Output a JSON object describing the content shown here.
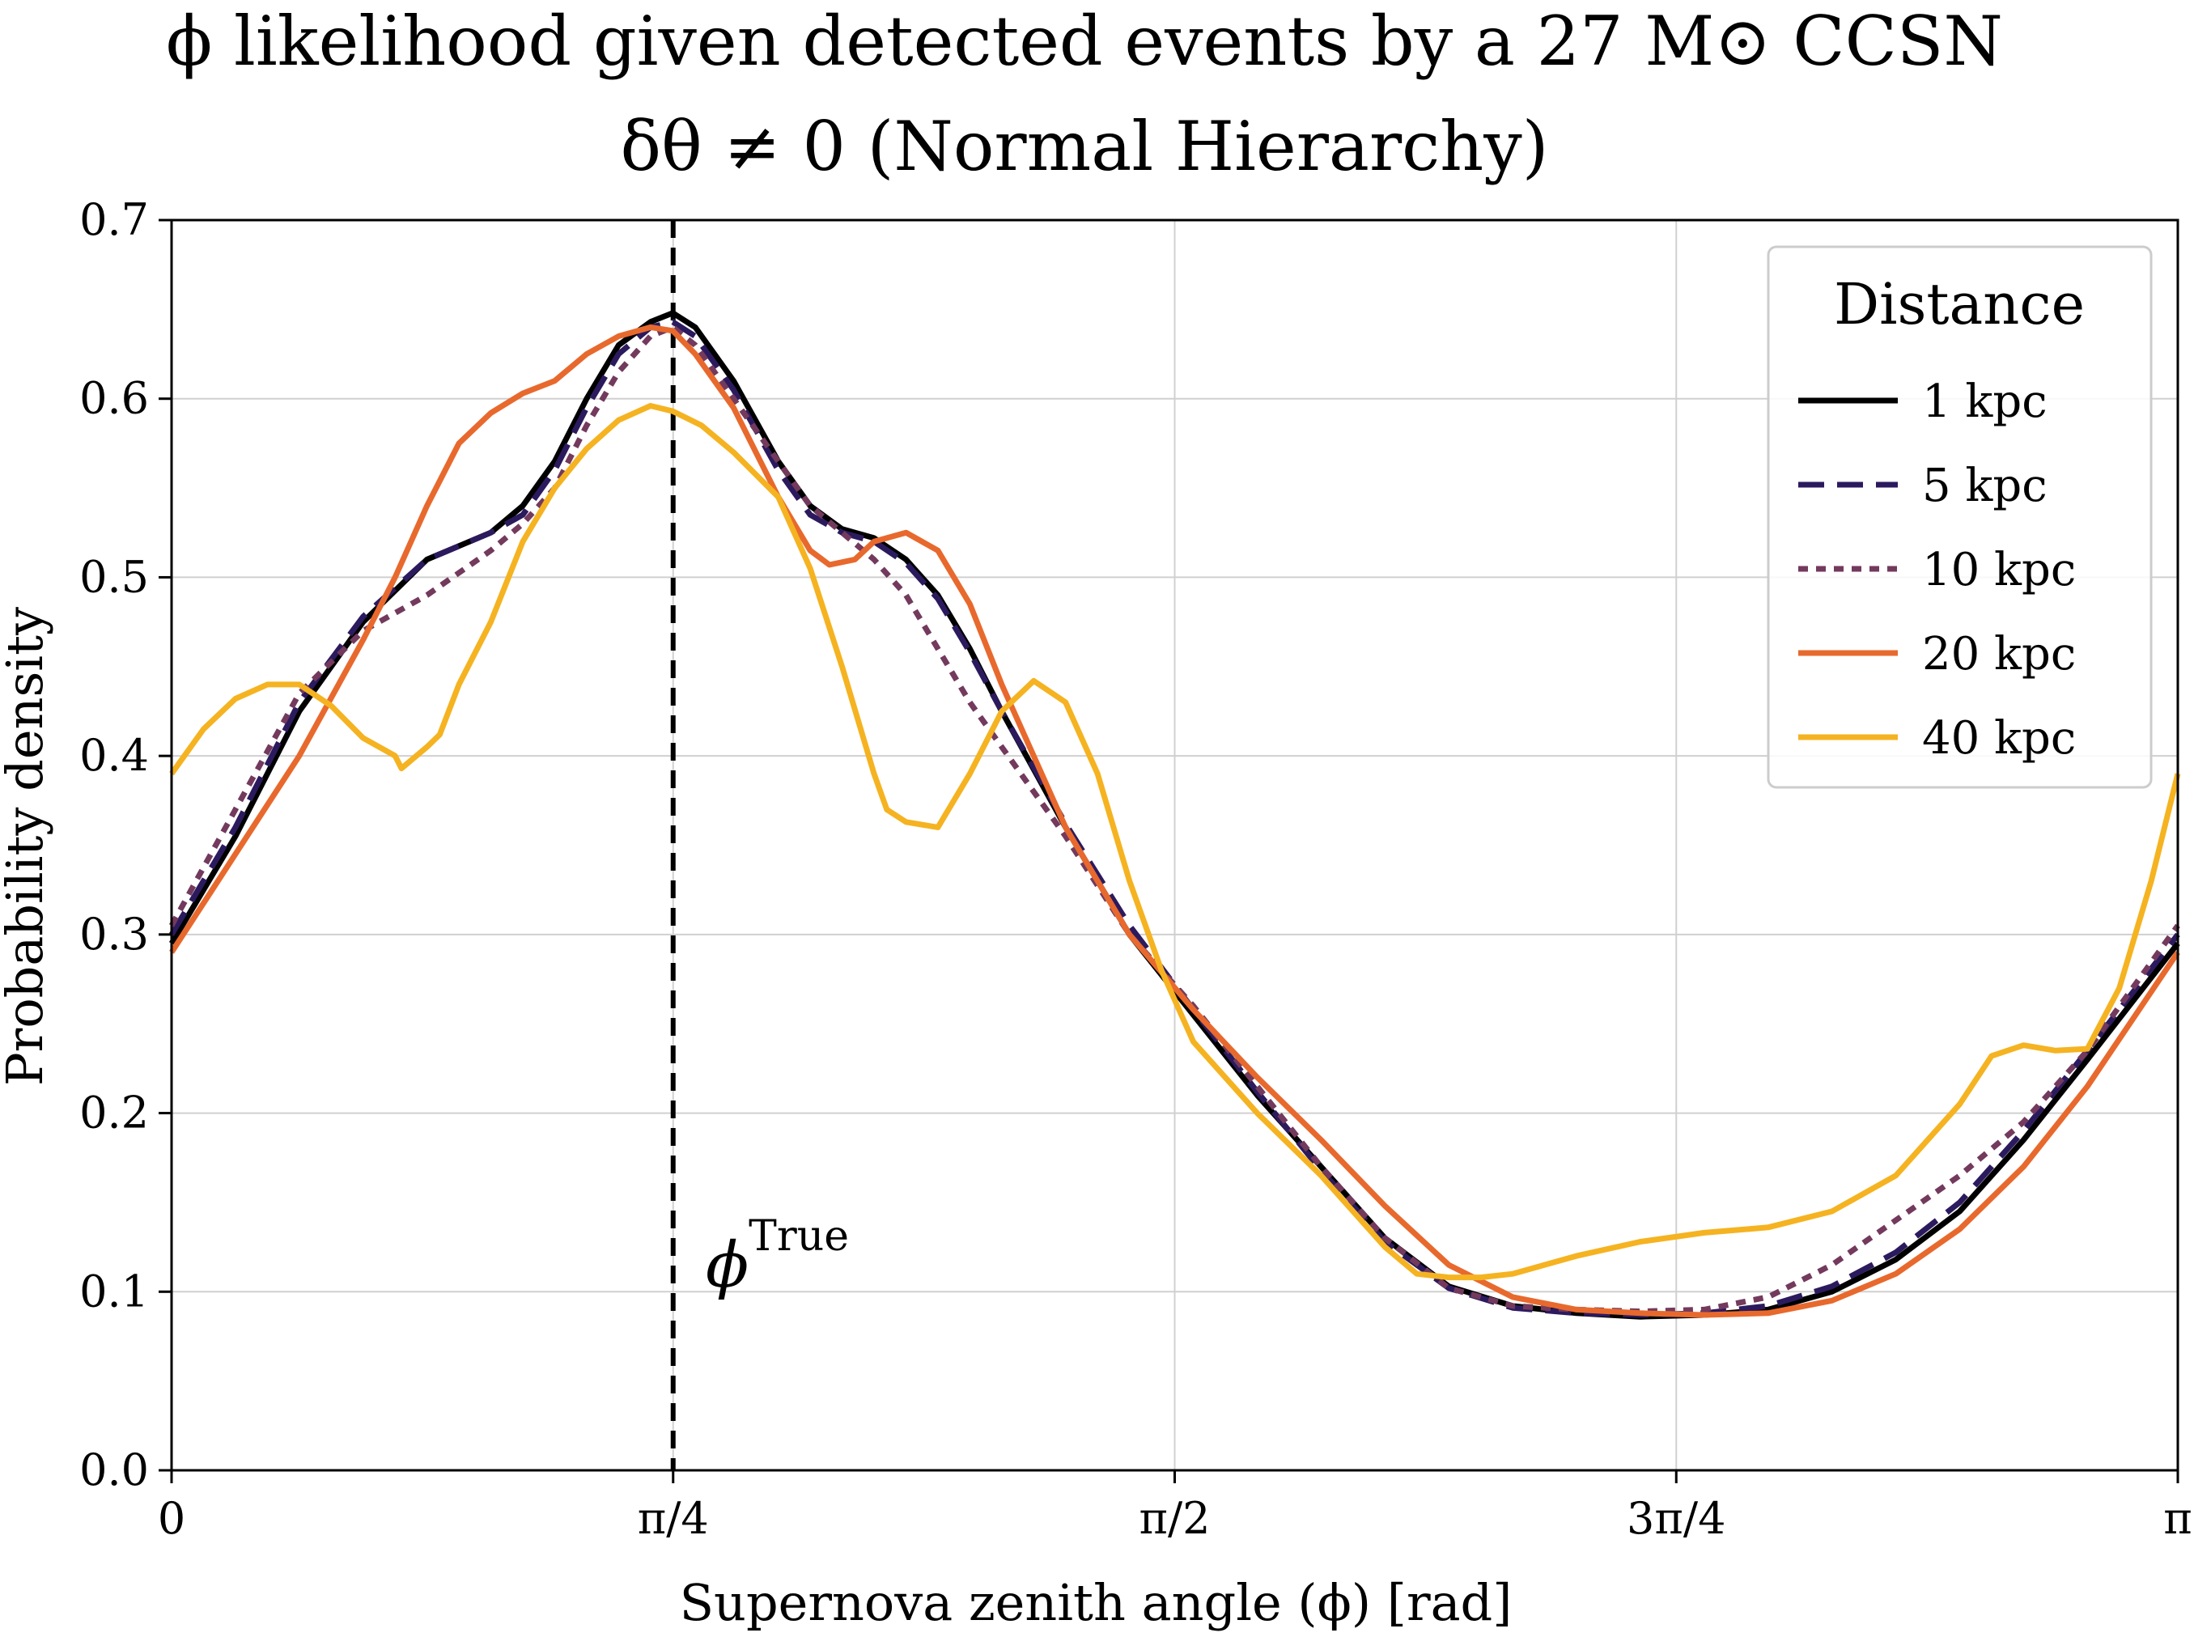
{
  "chart_data": {
    "type": "line",
    "title": "ϕ likelihood given detected events by a 27 M⊙ CCSN",
    "subtitle": "δθ ≠ 0 (Normal Hierarchy)",
    "xlabel": "Supernova zenith angle (ϕ) [rad]",
    "ylabel": "Probability density",
    "xlim": [
      0,
      3.14159
    ],
    "ylim": [
      0,
      0.7
    ],
    "x_ticks": [
      {
        "value": 0,
        "label": "0"
      },
      {
        "value": 0.7854,
        "label": "π/4"
      },
      {
        "value": 1.5708,
        "label": "π/2"
      },
      {
        "value": 2.3562,
        "label": "3π/4"
      },
      {
        "value": 3.14159,
        "label": "π"
      }
    ],
    "y_ticks": [
      {
        "value": 0.0,
        "label": "0.0"
      },
      {
        "value": 0.1,
        "label": "0.1"
      },
      {
        "value": 0.2,
        "label": "0.2"
      },
      {
        "value": 0.3,
        "label": "0.3"
      },
      {
        "value": 0.4,
        "label": "0.4"
      },
      {
        "value": 0.5,
        "label": "0.5"
      },
      {
        "value": 0.6,
        "label": "0.6"
      },
      {
        "value": 0.7,
        "label": "0.7"
      }
    ],
    "grid": true,
    "legend": {
      "title": "Distance",
      "placement": "top-right"
    },
    "true_value": {
      "x": 0.7854,
      "label_base": "ϕ",
      "label_sup": "True"
    },
    "series": [
      {
        "name": "1 kpc",
        "color": "#000000",
        "dash": "solid",
        "points": [
          [
            0,
            0.295
          ],
          [
            0.1,
            0.355
          ],
          [
            0.2,
            0.425
          ],
          [
            0.3,
            0.475
          ],
          [
            0.4,
            0.51
          ],
          [
            0.5,
            0.525
          ],
          [
            0.55,
            0.54
          ],
          [
            0.6,
            0.565
          ],
          [
            0.65,
            0.6
          ],
          [
            0.7,
            0.63
          ],
          [
            0.75,
            0.643
          ],
          [
            0.785,
            0.648
          ],
          [
            0.82,
            0.64
          ],
          [
            0.88,
            0.61
          ],
          [
            0.95,
            0.565
          ],
          [
            1.0,
            0.54
          ],
          [
            1.05,
            0.527
          ],
          [
            1.1,
            0.522
          ],
          [
            1.15,
            0.51
          ],
          [
            1.2,
            0.49
          ],
          [
            1.25,
            0.46
          ],
          [
            1.3,
            0.425
          ],
          [
            1.4,
            0.36
          ],
          [
            1.5,
            0.3
          ],
          [
            1.6,
            0.255
          ],
          [
            1.7,
            0.21
          ],
          [
            1.8,
            0.17
          ],
          [
            1.9,
            0.13
          ],
          [
            2.0,
            0.103
          ],
          [
            2.1,
            0.092
          ],
          [
            2.2,
            0.088
          ],
          [
            2.3,
            0.086
          ],
          [
            2.4,
            0.087
          ],
          [
            2.5,
            0.09
          ],
          [
            2.6,
            0.1
          ],
          [
            2.7,
            0.118
          ],
          [
            2.8,
            0.145
          ],
          [
            2.9,
            0.185
          ],
          [
            3.0,
            0.23
          ],
          [
            3.14159,
            0.295
          ]
        ]
      },
      {
        "name": "5 kpc",
        "color": "#2c1a5e",
        "dash": "dashed",
        "points": [
          [
            0,
            0.3
          ],
          [
            0.1,
            0.36
          ],
          [
            0.2,
            0.43
          ],
          [
            0.3,
            0.478
          ],
          [
            0.4,
            0.51
          ],
          [
            0.5,
            0.525
          ],
          [
            0.55,
            0.535
          ],
          [
            0.6,
            0.56
          ],
          [
            0.65,
            0.595
          ],
          [
            0.7,
            0.625
          ],
          [
            0.75,
            0.64
          ],
          [
            0.785,
            0.643
          ],
          [
            0.82,
            0.635
          ],
          [
            0.88,
            0.605
          ],
          [
            0.95,
            0.56
          ],
          [
            1.0,
            0.535
          ],
          [
            1.05,
            0.525
          ],
          [
            1.1,
            0.52
          ],
          [
            1.15,
            0.508
          ],
          [
            1.2,
            0.488
          ],
          [
            1.25,
            0.458
          ],
          [
            1.3,
            0.425
          ],
          [
            1.4,
            0.362
          ],
          [
            1.5,
            0.305
          ],
          [
            1.6,
            0.258
          ],
          [
            1.7,
            0.212
          ],
          [
            1.8,
            0.168
          ],
          [
            1.9,
            0.128
          ],
          [
            2.0,
            0.102
          ],
          [
            2.1,
            0.091
          ],
          [
            2.2,
            0.088
          ],
          [
            2.3,
            0.087
          ],
          [
            2.4,
            0.088
          ],
          [
            2.5,
            0.092
          ],
          [
            2.6,
            0.103
          ],
          [
            2.7,
            0.122
          ],
          [
            2.8,
            0.15
          ],
          [
            2.9,
            0.19
          ],
          [
            3.0,
            0.235
          ],
          [
            3.14159,
            0.3
          ]
        ]
      },
      {
        "name": "10 kpc",
        "color": "#733a5d",
        "dash": "dotted",
        "points": [
          [
            0,
            0.305
          ],
          [
            0.1,
            0.37
          ],
          [
            0.2,
            0.435
          ],
          [
            0.3,
            0.47
          ],
          [
            0.4,
            0.49
          ],
          [
            0.5,
            0.515
          ],
          [
            0.55,
            0.53
          ],
          [
            0.6,
            0.55
          ],
          [
            0.65,
            0.585
          ],
          [
            0.7,
            0.615
          ],
          [
            0.75,
            0.635
          ],
          [
            0.785,
            0.64
          ],
          [
            0.82,
            0.63
          ],
          [
            0.88,
            0.6
          ],
          [
            0.95,
            0.565
          ],
          [
            1.0,
            0.54
          ],
          [
            1.05,
            0.525
          ],
          [
            1.1,
            0.51
          ],
          [
            1.15,
            0.49
          ],
          [
            1.2,
            0.46
          ],
          [
            1.25,
            0.43
          ],
          [
            1.3,
            0.405
          ],
          [
            1.4,
            0.355
          ],
          [
            1.5,
            0.3
          ],
          [
            1.6,
            0.26
          ],
          [
            1.7,
            0.215
          ],
          [
            1.8,
            0.17
          ],
          [
            1.9,
            0.13
          ],
          [
            2.0,
            0.102
          ],
          [
            2.1,
            0.092
          ],
          [
            2.2,
            0.09
          ],
          [
            2.3,
            0.089
          ],
          [
            2.4,
            0.09
          ],
          [
            2.5,
            0.097
          ],
          [
            2.6,
            0.115
          ],
          [
            2.7,
            0.14
          ],
          [
            2.8,
            0.165
          ],
          [
            2.9,
            0.195
          ],
          [
            3.0,
            0.235
          ],
          [
            3.14159,
            0.305
          ]
        ]
      },
      {
        "name": "20 kpc",
        "color": "#e8692d",
        "dash": "solid",
        "points": [
          [
            0,
            0.29
          ],
          [
            0.1,
            0.345
          ],
          [
            0.2,
            0.4
          ],
          [
            0.3,
            0.465
          ],
          [
            0.35,
            0.5
          ],
          [
            0.4,
            0.54
          ],
          [
            0.45,
            0.575
          ],
          [
            0.5,
            0.592
          ],
          [
            0.55,
            0.603
          ],
          [
            0.6,
            0.61
          ],
          [
            0.65,
            0.625
          ],
          [
            0.7,
            0.635
          ],
          [
            0.75,
            0.64
          ],
          [
            0.785,
            0.638
          ],
          [
            0.82,
            0.625
          ],
          [
            0.88,
            0.595
          ],
          [
            0.95,
            0.545
          ],
          [
            1.0,
            0.515
          ],
          [
            1.03,
            0.507
          ],
          [
            1.07,
            0.51
          ],
          [
            1.1,
            0.52
          ],
          [
            1.15,
            0.525
          ],
          [
            1.2,
            0.515
          ],
          [
            1.25,
            0.485
          ],
          [
            1.3,
            0.44
          ],
          [
            1.4,
            0.36
          ],
          [
            1.5,
            0.3
          ],
          [
            1.6,
            0.258
          ],
          [
            1.7,
            0.22
          ],
          [
            1.8,
            0.185
          ],
          [
            1.9,
            0.148
          ],
          [
            2.0,
            0.115
          ],
          [
            2.1,
            0.097
          ],
          [
            2.2,
            0.09
          ],
          [
            2.3,
            0.088
          ],
          [
            2.4,
            0.087
          ],
          [
            2.5,
            0.088
          ],
          [
            2.6,
            0.095
          ],
          [
            2.7,
            0.11
          ],
          [
            2.8,
            0.135
          ],
          [
            2.9,
            0.17
          ],
          [
            3.0,
            0.215
          ],
          [
            3.14159,
            0.29
          ]
        ]
      },
      {
        "name": "40 kpc",
        "color": "#f5b321",
        "dash": "solid",
        "points": [
          [
            0,
            0.39
          ],
          [
            0.05,
            0.415
          ],
          [
            0.1,
            0.432
          ],
          [
            0.15,
            0.44
          ],
          [
            0.2,
            0.44
          ],
          [
            0.25,
            0.428
          ],
          [
            0.3,
            0.41
          ],
          [
            0.35,
            0.4
          ],
          [
            0.36,
            0.393
          ],
          [
            0.4,
            0.405
          ],
          [
            0.42,
            0.412
          ],
          [
            0.45,
            0.44
          ],
          [
            0.5,
            0.475
          ],
          [
            0.55,
            0.52
          ],
          [
            0.6,
            0.55
          ],
          [
            0.65,
            0.572
          ],
          [
            0.7,
            0.588
          ],
          [
            0.75,
            0.596
          ],
          [
            0.785,
            0.593
          ],
          [
            0.83,
            0.585
          ],
          [
            0.88,
            0.57
          ],
          [
            0.95,
            0.545
          ],
          [
            1.0,
            0.505
          ],
          [
            1.05,
            0.45
          ],
          [
            1.1,
            0.39
          ],
          [
            1.12,
            0.37
          ],
          [
            1.15,
            0.363
          ],
          [
            1.2,
            0.36
          ],
          [
            1.25,
            0.39
          ],
          [
            1.3,
            0.425
          ],
          [
            1.35,
            0.442
          ],
          [
            1.4,
            0.43
          ],
          [
            1.45,
            0.39
          ],
          [
            1.5,
            0.33
          ],
          [
            1.55,
            0.28
          ],
          [
            1.6,
            0.24
          ],
          [
            1.7,
            0.2
          ],
          [
            1.8,
            0.165
          ],
          [
            1.9,
            0.125
          ],
          [
            1.95,
            0.11
          ],
          [
            2.0,
            0.108
          ],
          [
            2.05,
            0.108
          ],
          [
            2.1,
            0.11
          ],
          [
            2.2,
            0.12
          ],
          [
            2.3,
            0.128
          ],
          [
            2.4,
            0.133
          ],
          [
            2.5,
            0.136
          ],
          [
            2.6,
            0.145
          ],
          [
            2.7,
            0.165
          ],
          [
            2.8,
            0.205
          ],
          [
            2.85,
            0.232
          ],
          [
            2.9,
            0.238
          ],
          [
            2.95,
            0.235
          ],
          [
            3.0,
            0.236
          ],
          [
            3.05,
            0.27
          ],
          [
            3.1,
            0.33
          ],
          [
            3.14159,
            0.39
          ]
        ]
      }
    ]
  }
}
